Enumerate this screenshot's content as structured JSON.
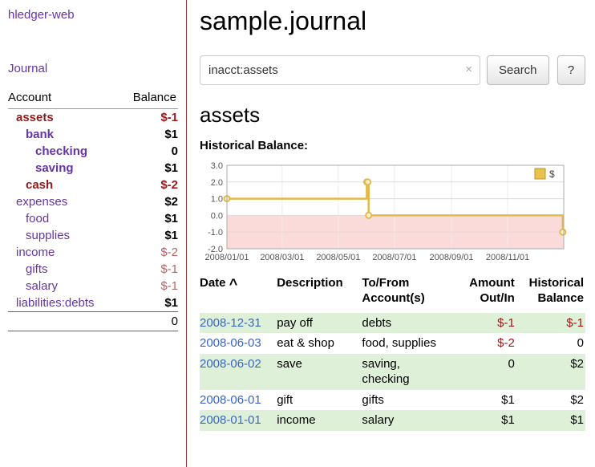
{
  "sidebar": {
    "app_title": "hledger-web",
    "journal_link": "Journal",
    "table": {
      "account_header": "Account",
      "balance_header": "Balance",
      "rows": [
        {
          "account": "assets",
          "balance": "$-1",
          "indent": 0,
          "bold": true,
          "name_class": "red",
          "balance_class": "neg"
        },
        {
          "account": "bank",
          "balance": "$1",
          "indent": 1,
          "bold": true,
          "name_class": "purple",
          "balance_class": "pos"
        },
        {
          "account": "checking",
          "balance": "0",
          "indent": 2,
          "bold": true,
          "name_class": "purple",
          "balance_class": "pos"
        },
        {
          "account": "saving",
          "balance": "$1",
          "indent": 2,
          "bold": true,
          "name_class": "purple",
          "balance_class": "pos"
        },
        {
          "account": "cash",
          "balance": "$-2",
          "indent": 1,
          "bold": true,
          "name_class": "red",
          "balance_class": "neg"
        },
        {
          "account": "expenses",
          "balance": "$2",
          "indent": 0,
          "bold": false,
          "name_class": "purple",
          "balance_class": "pos"
        },
        {
          "account": "food",
          "balance": "$1",
          "indent": 1,
          "bold": false,
          "name_class": "purple",
          "balance_class": "pos"
        },
        {
          "account": "supplies",
          "balance": "$1",
          "indent": 1,
          "bold": false,
          "name_class": "purple",
          "balance_class": "pos"
        },
        {
          "account": "income",
          "balance": "$-2",
          "indent": 0,
          "bold": false,
          "name_class": "purple",
          "balance_class": "neg-soft"
        },
        {
          "account": "gifts",
          "balance": "$-1",
          "indent": 1,
          "bold": false,
          "name_class": "purple",
          "balance_class": "neg-soft"
        },
        {
          "account": "salary",
          "balance": "$-1",
          "indent": 1,
          "bold": false,
          "name_class": "purple",
          "balance_class": "neg-soft"
        },
        {
          "account": "liabilities:debts",
          "balance": "$1",
          "indent": 0,
          "bold": false,
          "name_class": "purple",
          "balance_class": "pos"
        }
      ],
      "total": "0"
    }
  },
  "main": {
    "title": "sample.journal",
    "search": {
      "value": "inacct:assets",
      "clear_icon": "×",
      "button_label": "Search",
      "help_label": "?"
    },
    "section_heading": "assets",
    "chart_label": "Historical Balance:",
    "register": {
      "headers": {
        "date": "Date",
        "sort_indicator": "^",
        "description": "Description",
        "accounts": "To/From Account(s)",
        "amount": "Amount Out/In",
        "balance": "Historical Balance"
      },
      "rows": [
        {
          "date": "2008-12-31",
          "description": "pay off",
          "accounts": "debts",
          "amount": "$-1",
          "balance": "$-1",
          "amount_negative": true,
          "balance_negative": true,
          "shaded": true
        },
        {
          "date": "2008-06-03",
          "description": "eat & shop",
          "accounts": "food, supplies",
          "amount": "$-2",
          "balance": "0",
          "amount_negative": true,
          "balance_negative": false,
          "shaded": false
        },
        {
          "date": "2008-06-02",
          "description": "save",
          "accounts": "saving, checking",
          "amount": "0",
          "balance": "$2",
          "amount_negative": false,
          "balance_negative": false,
          "shaded": true
        },
        {
          "date": "2008-06-01",
          "description": "gift",
          "accounts": "gifts",
          "amount": "$1",
          "balance": "$2",
          "amount_negative": false,
          "balance_negative": false,
          "shaded": false
        },
        {
          "date": "2008-01-01",
          "description": "income",
          "accounts": "salary",
          "amount": "$1",
          "balance": "$1",
          "amount_negative": false,
          "balance_negative": false,
          "shaded": true
        }
      ]
    }
  },
  "chart_data": {
    "type": "line",
    "step": true,
    "title": "Historical Balance:",
    "series": [
      {
        "name": "$",
        "points": [
          {
            "date": "2008-01-01",
            "value": 1
          },
          {
            "date": "2008-06-01",
            "value": 2
          },
          {
            "date": "2008-06-02",
            "value": 2
          },
          {
            "date": "2008-06-03",
            "value": 0
          },
          {
            "date": "2008-12-31",
            "value": -1
          }
        ]
      }
    ],
    "ylim": [
      -2.0,
      3.0
    ],
    "yticks": [
      3.0,
      2.0,
      1.0,
      0.0,
      -1.0,
      -2.0
    ],
    "xrange": [
      "2008-01-01",
      "2009-01-01"
    ],
    "xticks": [
      "2008/01/01",
      "2008/03/01",
      "2008/05/01",
      "2008/07/01",
      "2008/09/01",
      "2008/11/01"
    ],
    "legend": {
      "label": "$",
      "position": "top-right"
    },
    "grid": true,
    "colors": {
      "line": "#e2ba4a",
      "marker_fill": "#fdf2cf",
      "negative_fill": "#fbdada",
      "legend_fill": "#e8c44c",
      "legend_border": "#bb952c",
      "grid_line": "#dcdcdc",
      "plot_border": "#aaaaaa",
      "row_green": "#dff0d8",
      "link_blue": "#3a66c4",
      "negative_red": "#a01818",
      "accent_purple": "#6633aa"
    }
  }
}
